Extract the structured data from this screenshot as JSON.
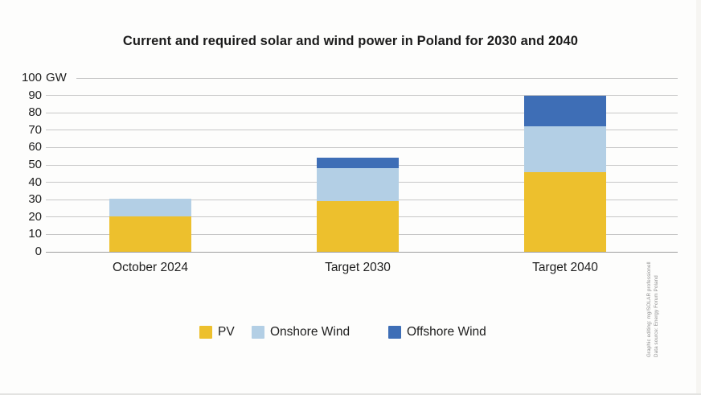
{
  "page": {
    "background": "#fdfdfc"
  },
  "chart_data": {
    "type": "bar",
    "stacked": true,
    "title": "Current and required solar and wind power in Poland for 2030 and 2040",
    "unit": "GW",
    "ylabel": "GW",
    "ylim": [
      0,
      100
    ],
    "ytick_step": 10,
    "grid": true,
    "legend_position": "bottom-center",
    "categories": [
      "October 2024",
      "Target 2030",
      "Target 2040"
    ],
    "series": [
      {
        "name": "PV",
        "color": "#edc02d",
        "values": [
          20.5,
          29,
          46
        ]
      },
      {
        "name": "Onshore Wind",
        "color": "#b3cfe5",
        "values": [
          10,
          19,
          26
        ]
      },
      {
        "name": "Offshore Wind",
        "color": "#3e6eb6",
        "values": [
          0,
          6,
          18
        ]
      }
    ]
  },
  "credits": {
    "line1": "Graphic editing: mg/SOLAR professionell",
    "line2": "Data source: Energy Forum Poland"
  }
}
